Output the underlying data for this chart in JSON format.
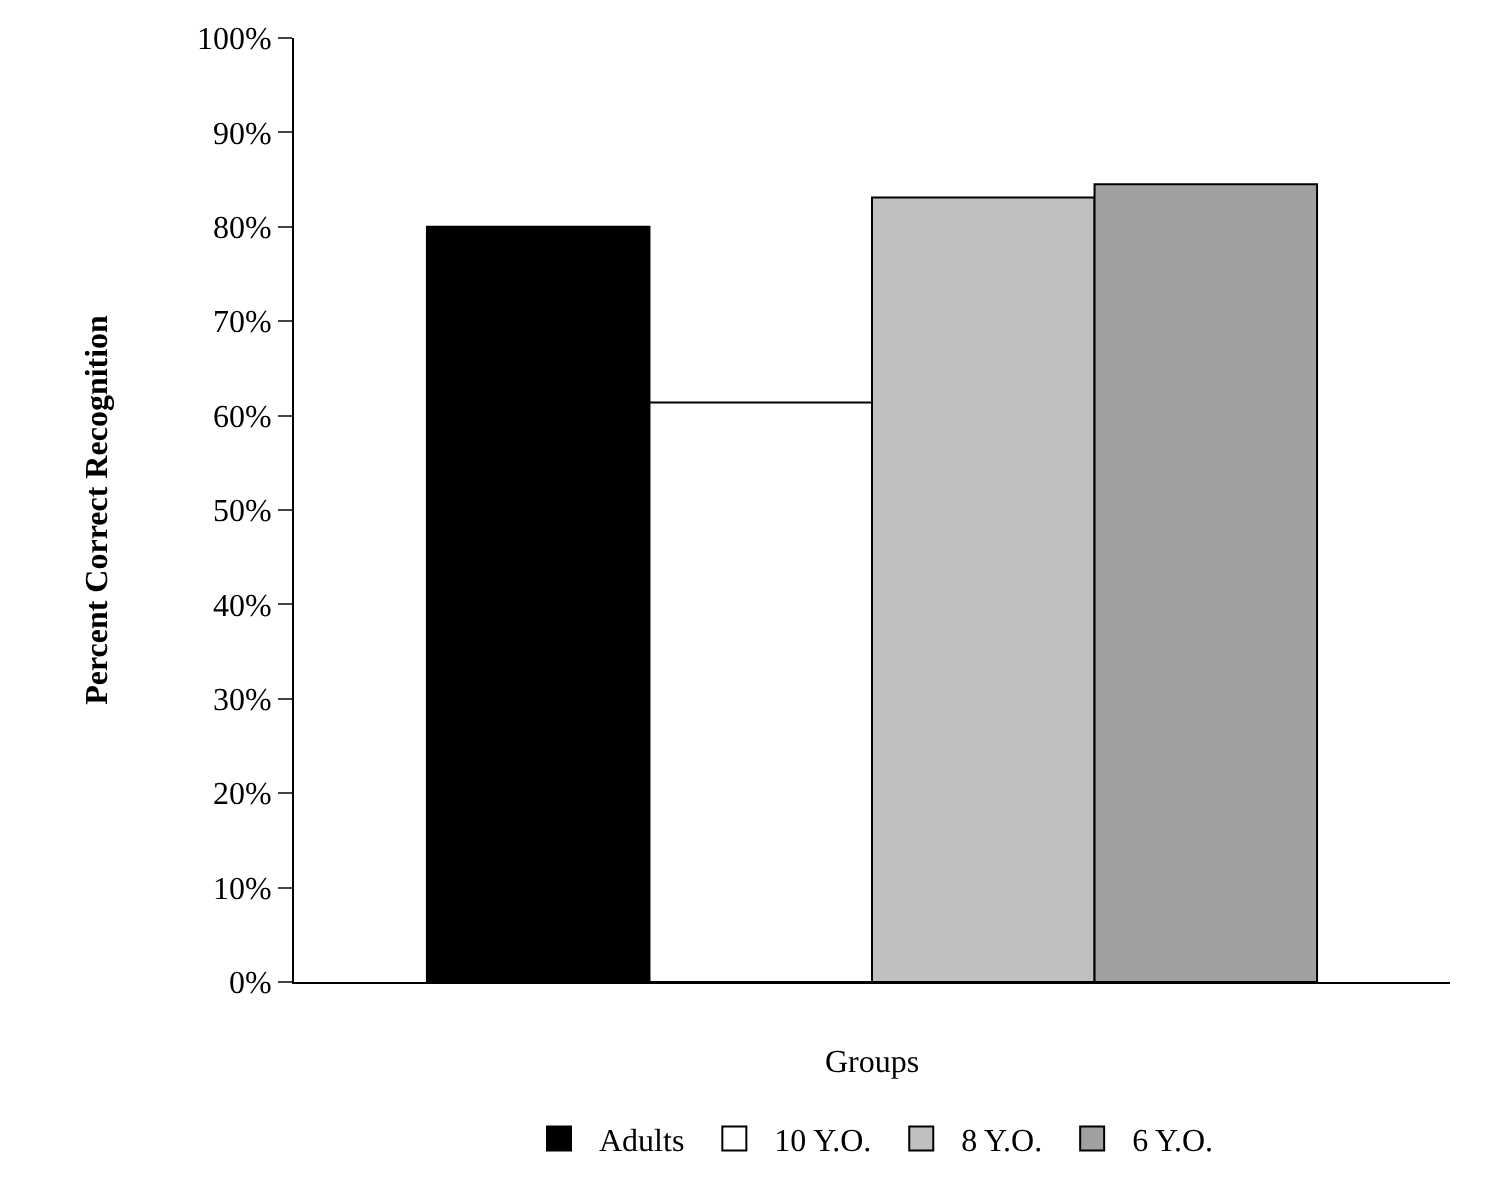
{
  "chart_data": {
    "type": "bar",
    "xlabel": "Groups",
    "ylabel": "Percent Correct Recognition",
    "categories": [
      null
    ],
    "series": [
      {
        "name": "Adults",
        "color": "#000000",
        "values": [
          80
        ]
      },
      {
        "name": "10 Y.O.",
        "color": "#ffffff",
        "values": [
          61.4
        ]
      },
      {
        "name": "8 Y.O.",
        "color": "#c0c0c0",
        "values": [
          83.1
        ]
      },
      {
        "name": "6 Y.O.",
        "color": "#a0a0a0",
        "values": [
          84.5
        ]
      }
    ],
    "ylim": [
      0,
      100
    ],
    "yticks": [
      {
        "value": 0,
        "label": "0%"
      },
      {
        "value": 10,
        "label": "10%"
      },
      {
        "value": 20,
        "label": "20%"
      },
      {
        "value": 30,
        "label": "30%"
      },
      {
        "value": 40,
        "label": "40%"
      },
      {
        "value": 50,
        "label": "50%"
      },
      {
        "value": 60,
        "label": "60%"
      },
      {
        "value": 70,
        "label": "70%"
      },
      {
        "value": 80,
        "label": "80%"
      },
      {
        "value": 90,
        "label": "90%"
      },
      {
        "value": 100,
        "label": "100%"
      }
    ],
    "grid": false,
    "legend": "bottom"
  }
}
